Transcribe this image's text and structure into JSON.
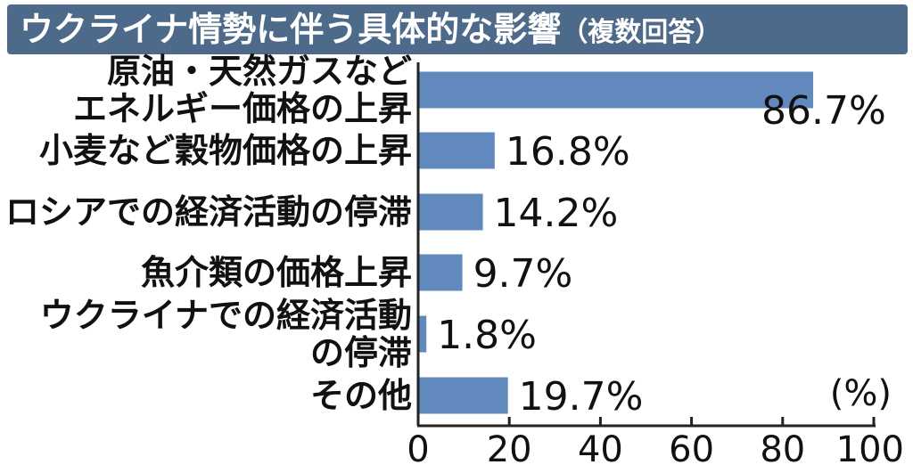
{
  "chart_data": {
    "type": "bar",
    "orientation": "horizontal",
    "title": "ウクライナ情勢に伴う具体的な影響",
    "subtitle": "（複数回答）",
    "unit": "(%)",
    "categories": [
      [
        "原油・天然ガスなど",
        "エネルギー価格の上昇"
      ],
      [
        "小麦など穀物価格の上昇"
      ],
      [
        "ロシアでの経済活動の停滞"
      ],
      [
        "魚介類の価格上昇"
      ],
      [
        "ウクライナでの経済活動",
        "の停滞"
      ],
      [
        "その他"
      ]
    ],
    "values": [
      86.7,
      16.8,
      14.2,
      9.7,
      1.8,
      19.7
    ],
    "value_labels": [
      "86.7%",
      "16.8%",
      "14.2%",
      "9.7%",
      "1.8%",
      "19.7%"
    ],
    "xlim": [
      0,
      100
    ],
    "xticks": [
      0,
      20,
      40,
      60,
      80,
      100
    ],
    "grid": false,
    "colors": {
      "bar": "#6289bd",
      "title_bg": "#4d6a8a",
      "title_text": "#ffffff",
      "axis": "#222222"
    }
  }
}
